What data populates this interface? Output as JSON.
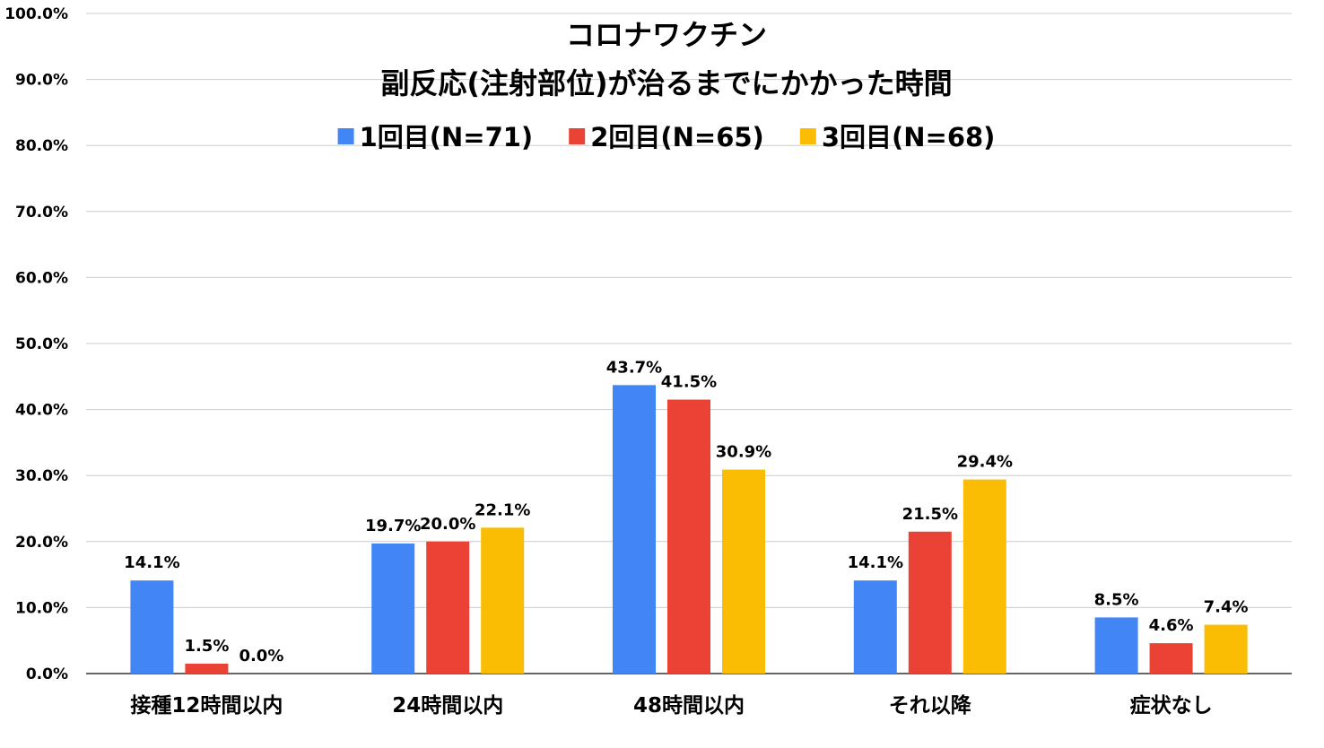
{
  "chart_data": {
    "type": "bar",
    "title": "コロナワクチン",
    "subtitle": "副反応(注射部位)が治るまでにかかった時間",
    "categories": [
      "接種12時間以内",
      "24時間以内",
      "48時間以内",
      "それ以降",
      "症状なし"
    ],
    "series": [
      {
        "name": "1回目(N=71)",
        "color": "#4285f4",
        "values": [
          14.1,
          19.7,
          43.7,
          14.1,
          8.5
        ],
        "labels": [
          "14.1%",
          "19.7%",
          "43.7%",
          "14.1%",
          "8.5%"
        ]
      },
      {
        "name": "2回目(N=65)",
        "color": "#ea4335",
        "values": [
          1.5,
          20.0,
          41.5,
          21.5,
          4.6
        ],
        "labels": [
          "1.5%",
          "20.0%",
          "41.5%",
          "21.5%",
          "4.6%"
        ]
      },
      {
        "name": "3回目(N=68)",
        "color": "#fbbc04",
        "values": [
          0.0,
          22.1,
          30.9,
          29.4,
          7.4
        ],
        "labels": [
          "0.0%",
          "22.1%",
          "30.9%",
          "29.4%",
          "7.4%"
        ]
      }
    ],
    "y_ticks": [
      "0.0%",
      "10.0%",
      "20.0%",
      "30.0%",
      "40.0%",
      "50.0%",
      "60.0%",
      "70.0%",
      "80.0%",
      "90.0%",
      "100.0%"
    ],
    "ylim": [
      0,
      100
    ],
    "grid": true,
    "legend_position": "top-center",
    "xlabel": "",
    "ylabel": ""
  }
}
